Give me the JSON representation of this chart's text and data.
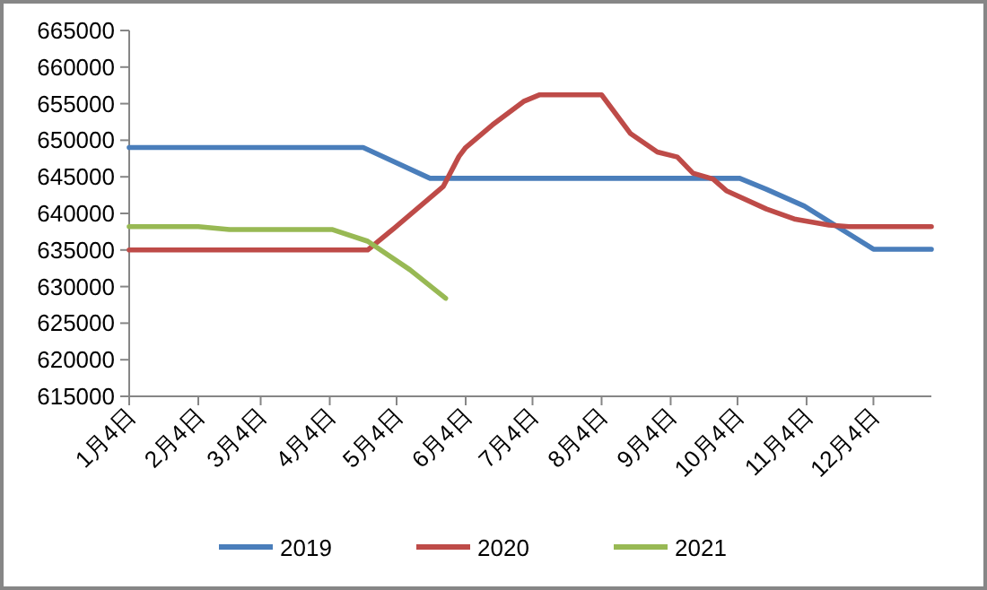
{
  "chart_data": {
    "type": "line",
    "xlim": [
      "--01-04",
      "--12-30"
    ],
    "ylim": [
      615000,
      665000
    ],
    "yticks": [
      615000,
      620000,
      625000,
      630000,
      635000,
      640000,
      645000,
      650000,
      655000,
      660000,
      665000
    ],
    "xticks": [
      {
        "value": "--01-04",
        "label": "1月4日"
      },
      {
        "value": "--02-04",
        "label": "2月4日"
      },
      {
        "value": "--03-04",
        "label": "3月4日"
      },
      {
        "value": "--04-04",
        "label": "4月4日"
      },
      {
        "value": "--05-04",
        "label": "5月4日"
      },
      {
        "value": "--06-04",
        "label": "6月4日"
      },
      {
        "value": "--07-04",
        "label": "7月4日"
      },
      {
        "value": "--08-04",
        "label": "8月4日"
      },
      {
        "value": "--09-04",
        "label": "9月4日"
      },
      {
        "value": "--10-04",
        "label": "10月4日"
      },
      {
        "value": "--11-04",
        "label": "11月4日"
      },
      {
        "value": "--12-04",
        "label": "12月4日"
      }
    ],
    "grid": false,
    "legend": "bottom",
    "marker": "none",
    "line_style": "solid",
    "series": [
      {
        "name": "2019",
        "color": "#4a7ebb",
        "x": [
          "--01-04",
          "--04-19",
          "--05-19",
          "--10-05",
          "--10-17",
          "--11-03",
          "--12-04",
          "--12-30"
        ],
        "values": [
          649000,
          649000,
          644800,
          644800,
          643300,
          641000,
          635100,
          635100
        ]
      },
      {
        "name": "2020",
        "color": "#be4b48",
        "x": [
          "--01-04",
          "--04-21",
          "--05-03",
          "--05-25",
          "--06-01",
          "--06-04",
          "--06-16",
          "--06-30",
          "--07-07",
          "--08-04",
          "--08-17",
          "--08-29",
          "--09-07",
          "--09-14",
          "--09-23",
          "--09-29",
          "--10-17",
          "--10-30",
          "--11-14",
          "--11-23",
          "--12-30"
        ],
        "values": [
          635000,
          635000,
          638000,
          643700,
          647800,
          649000,
          652100,
          655300,
          656200,
          656200,
          650900,
          648400,
          647700,
          645500,
          644700,
          643100,
          640600,
          639200,
          638400,
          638200,
          638200
        ]
      },
      {
        "name": "2021",
        "color": "#98b954",
        "x": [
          "--01-04",
          "--02-04",
          "--02-18",
          "--04-05",
          "--04-21",
          "--05-10",
          "--05-26"
        ],
        "values": [
          638200,
          638200,
          637800,
          637800,
          636200,
          632300,
          628400
        ]
      }
    ]
  }
}
